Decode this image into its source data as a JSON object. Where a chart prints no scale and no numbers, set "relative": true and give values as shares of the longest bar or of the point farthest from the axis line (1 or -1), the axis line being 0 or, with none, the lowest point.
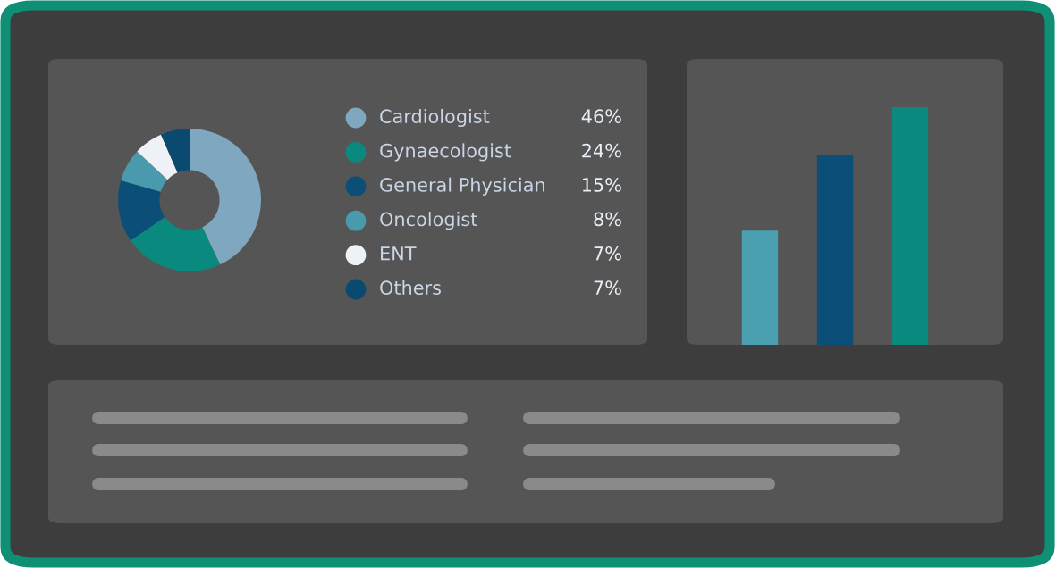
{
  "chart_data": [
    {
      "type": "donut",
      "categories": [
        "Cardiologist",
        "Gynaecologist",
        "General Physician",
        "Oncologist",
        "ENT",
        "Others"
      ],
      "values": [
        46,
        24,
        15,
        8,
        7,
        7
      ],
      "value_labels": [
        "46%",
        "24%",
        "15%",
        "8%",
        "7%",
        "7%"
      ],
      "colors": [
        "#7fa7bf",
        "#0a8a7e",
        "#0b4f79",
        "#4a9aad",
        "#eef2f7",
        "#0b4a70"
      ],
      "legend": "right"
    },
    {
      "type": "bar",
      "relative": true,
      "categories": [
        null,
        null,
        null
      ],
      "values": [
        0.48,
        0.8,
        1.0
      ],
      "colors": [
        "#4a9fb0",
        "#0b4f79",
        "#0a8a7e"
      ]
    }
  ]
}
